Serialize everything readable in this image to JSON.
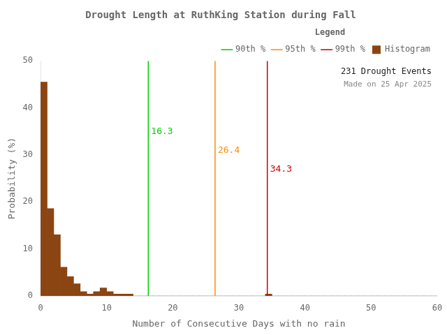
{
  "chart_data": {
    "type": "histogram",
    "title": "Drought Length at RuthKing Station during Fall",
    "xlabel": "Number of Consecutive Days with no rain",
    "ylabel": "Probability (%)",
    "bins": [
      0,
      1,
      2,
      3,
      4,
      5,
      6,
      7,
      8,
      9,
      10,
      11,
      12,
      13,
      14,
      15,
      16,
      17,
      18,
      19,
      20,
      21,
      22,
      23,
      24,
      25,
      26,
      27,
      28,
      29,
      30,
      31,
      32,
      33,
      34,
      35,
      36,
      37,
      38,
      39,
      40,
      41,
      42,
      43,
      44,
      45,
      46,
      47,
      48,
      49,
      50,
      51,
      52,
      53,
      54,
      55,
      56,
      57,
      58,
      59,
      60
    ],
    "series": [
      {
        "name": "Histogram",
        "color": "#8B4513",
        "values": [
          45.5,
          18.6,
          13.0,
          6.1,
          4.1,
          2.6,
          0.9,
          0.4,
          0.9,
          1.7,
          0.9,
          0.4,
          0.4,
          0.4,
          0.0,
          0.0,
          0.0,
          0.0,
          0.0,
          0.0,
          0.0,
          0.0,
          0.0,
          0.0,
          0.0,
          0.0,
          0.0,
          0.0,
          0.0,
          0.0,
          0.0,
          0.0,
          0.0,
          0.0,
          0.4,
          0.0,
          0.0,
          0.0,
          0.0,
          0.0,
          0.0,
          0.0,
          0.0,
          0.0,
          0.0,
          0.0,
          0.0,
          0.0,
          0.0,
          0.0,
          0.0,
          0.0,
          0.0,
          0.0,
          0.0,
          0.0,
          0.0,
          0.0,
          0.0,
          0.0
        ]
      }
    ],
    "lines": [
      {
        "name": "90th %",
        "value": 16.3,
        "color": "#00CC00"
      },
      {
        "name": "95th %",
        "value": 26.4,
        "color": "#FF8C00"
      },
      {
        "name": "99th %",
        "value": 34.3,
        "color": "#CC0000"
      }
    ],
    "annotations": [
      "231 Drought Events",
      "Made on 25 Apr 2025"
    ],
    "legend_title": "Legend",
    "xlim": [
      0,
      60
    ],
    "ylim": [
      0,
      50
    ],
    "xticks": [
      0,
      10,
      20,
      30,
      40,
      50,
      60
    ],
    "yticks": [
      0,
      10,
      20,
      30,
      40,
      50
    ],
    "legend": "upper right",
    "grid": false
  }
}
